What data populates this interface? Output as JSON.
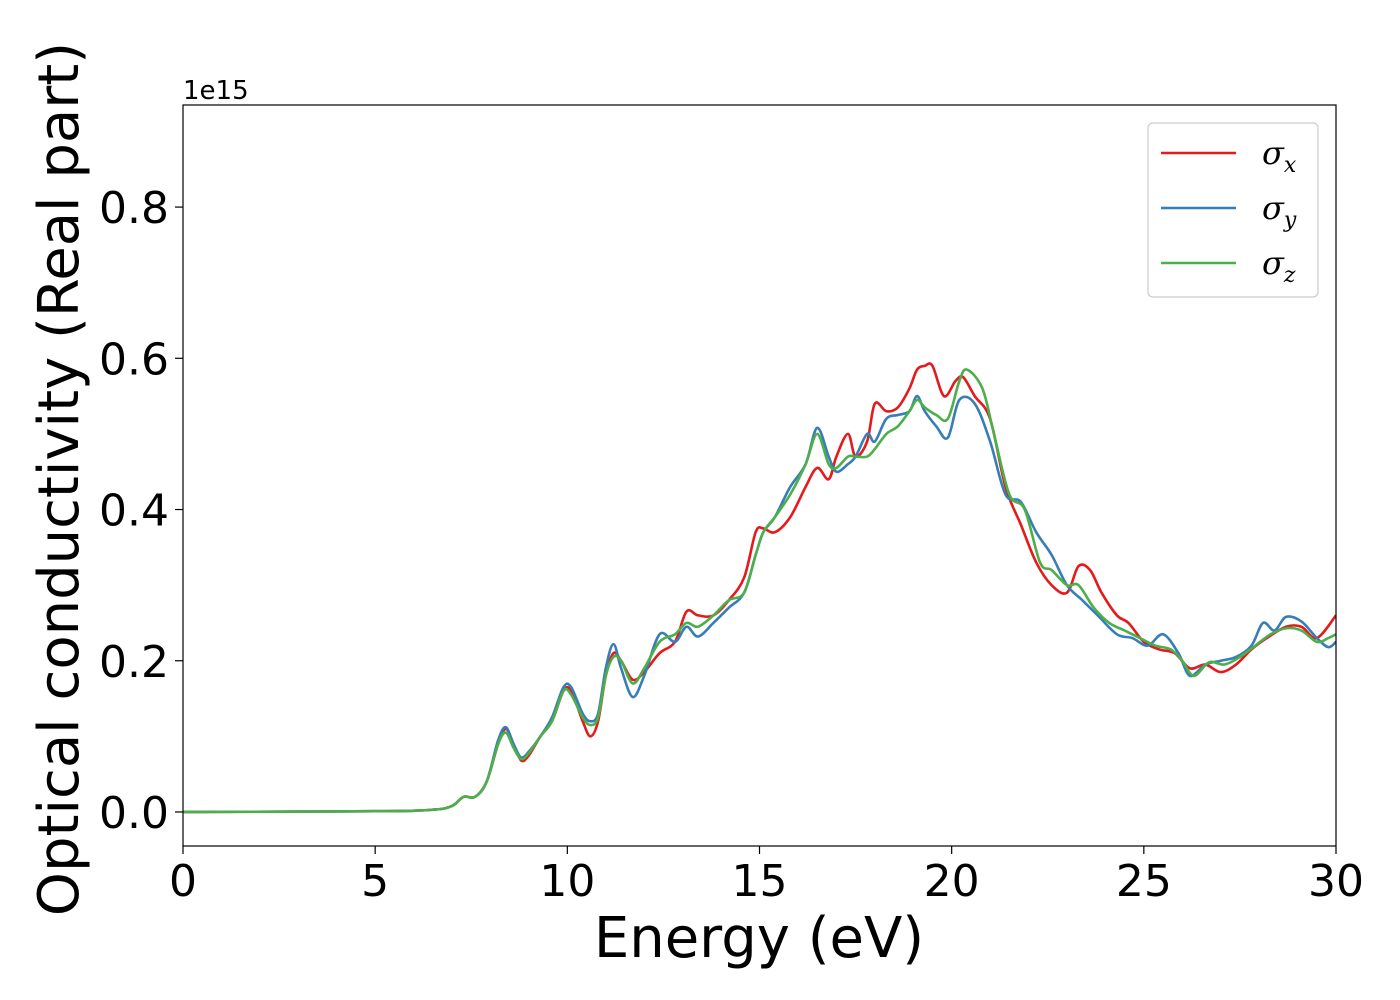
{
  "chart_data": {
    "type": "line",
    "xlabel": "Energy (eV)",
    "ylabel": "Optical conductivity (Real part)",
    "y_offset_label": "1e15",
    "xlim": [
      0,
      30
    ],
    "ylim": [
      -0.045,
      0.935
    ],
    "x_ticks": [
      0,
      5,
      10,
      15,
      20,
      25,
      30
    ],
    "x_tick_labels": [
      "0",
      "5",
      "10",
      "15",
      "20",
      "25",
      "30"
    ],
    "y_ticks": [
      0.0,
      0.2,
      0.4,
      0.6,
      0.8
    ],
    "y_tick_labels": [
      "0.0",
      "0.2",
      "0.4",
      "0.6",
      "0.8"
    ],
    "grid": false,
    "legend_position": "top-right",
    "series": [
      {
        "name": "σx",
        "symbol": "σ",
        "subscript": "x",
        "color": "#e41a1c",
        "points": [
          [
            0,
            0
          ],
          [
            5,
            0.001
          ],
          [
            6.5,
            0.003
          ],
          [
            7.0,
            0.008
          ],
          [
            7.3,
            0.02
          ],
          [
            7.6,
            0.02
          ],
          [
            7.9,
            0.04
          ],
          [
            8.2,
            0.09
          ],
          [
            8.4,
            0.11
          ],
          [
            8.6,
            0.09
          ],
          [
            8.8,
            0.068
          ],
          [
            9.0,
            0.075
          ],
          [
            9.3,
            0.1
          ],
          [
            9.6,
            0.12
          ],
          [
            9.9,
            0.16
          ],
          [
            10.1,
            0.16
          ],
          [
            10.4,
            0.12
          ],
          [
            10.6,
            0.1
          ],
          [
            10.8,
            0.12
          ],
          [
            11.0,
            0.18
          ],
          [
            11.2,
            0.21
          ],
          [
            11.4,
            0.2
          ],
          [
            11.7,
            0.175
          ],
          [
            12.0,
            0.185
          ],
          [
            12.4,
            0.21
          ],
          [
            12.8,
            0.225
          ],
          [
            13.1,
            0.265
          ],
          [
            13.4,
            0.26
          ],
          [
            13.8,
            0.26
          ],
          [
            14.2,
            0.28
          ],
          [
            14.6,
            0.31
          ],
          [
            14.9,
            0.37
          ],
          [
            15.1,
            0.375
          ],
          [
            15.4,
            0.37
          ],
          [
            15.8,
            0.39
          ],
          [
            16.2,
            0.43
          ],
          [
            16.5,
            0.455
          ],
          [
            16.8,
            0.44
          ],
          [
            17.0,
            0.47
          ],
          [
            17.3,
            0.5
          ],
          [
            17.5,
            0.47
          ],
          [
            17.8,
            0.49
          ],
          [
            18.0,
            0.54
          ],
          [
            18.3,
            0.53
          ],
          [
            18.6,
            0.535
          ],
          [
            18.9,
            0.56
          ],
          [
            19.1,
            0.585
          ],
          [
            19.3,
            0.59
          ],
          [
            19.5,
            0.59
          ],
          [
            19.8,
            0.55
          ],
          [
            20.1,
            0.57
          ],
          [
            20.3,
            0.575
          ],
          [
            20.6,
            0.55
          ],
          [
            21.0,
            0.52
          ],
          [
            21.4,
            0.43
          ],
          [
            21.8,
            0.38
          ],
          [
            22.2,
            0.33
          ],
          [
            22.6,
            0.3
          ],
          [
            23.0,
            0.29
          ],
          [
            23.3,
            0.325
          ],
          [
            23.6,
            0.32
          ],
          [
            23.9,
            0.29
          ],
          [
            24.3,
            0.26
          ],
          [
            24.6,
            0.25
          ],
          [
            25.0,
            0.225
          ],
          [
            25.4,
            0.215
          ],
          [
            25.8,
            0.21
          ],
          [
            26.2,
            0.19
          ],
          [
            26.6,
            0.195
          ],
          [
            27.0,
            0.185
          ],
          [
            27.4,
            0.195
          ],
          [
            27.8,
            0.215
          ],
          [
            28.2,
            0.23
          ],
          [
            28.7,
            0.245
          ],
          [
            29.1,
            0.245
          ],
          [
            29.5,
            0.23
          ],
          [
            30.0,
            0.26
          ]
        ]
      },
      {
        "name": "σy",
        "symbol": "σ",
        "subscript": "y",
        "color": "#377eb8",
        "points": [
          [
            0,
            0
          ],
          [
            5,
            0.001
          ],
          [
            6.5,
            0.003
          ],
          [
            7.0,
            0.008
          ],
          [
            7.3,
            0.02
          ],
          [
            7.6,
            0.02
          ],
          [
            7.9,
            0.04
          ],
          [
            8.2,
            0.095
          ],
          [
            8.4,
            0.112
          ],
          [
            8.6,
            0.09
          ],
          [
            8.8,
            0.072
          ],
          [
            9.0,
            0.08
          ],
          [
            9.3,
            0.1
          ],
          [
            9.6,
            0.125
          ],
          [
            9.9,
            0.165
          ],
          [
            10.1,
            0.165
          ],
          [
            10.4,
            0.13
          ],
          [
            10.6,
            0.12
          ],
          [
            10.8,
            0.13
          ],
          [
            11.0,
            0.19
          ],
          [
            11.2,
            0.222
          ],
          [
            11.4,
            0.19
          ],
          [
            11.7,
            0.152
          ],
          [
            12.0,
            0.18
          ],
          [
            12.4,
            0.235
          ],
          [
            12.8,
            0.225
          ],
          [
            13.1,
            0.245
          ],
          [
            13.4,
            0.232
          ],
          [
            13.8,
            0.25
          ],
          [
            14.2,
            0.27
          ],
          [
            14.6,
            0.29
          ],
          [
            14.9,
            0.34
          ],
          [
            15.1,
            0.37
          ],
          [
            15.4,
            0.39
          ],
          [
            15.8,
            0.43
          ],
          [
            16.2,
            0.46
          ],
          [
            16.5,
            0.508
          ],
          [
            16.8,
            0.47
          ],
          [
            17.0,
            0.45
          ],
          [
            17.3,
            0.46
          ],
          [
            17.5,
            0.47
          ],
          [
            17.8,
            0.5
          ],
          [
            18.0,
            0.49
          ],
          [
            18.3,
            0.52
          ],
          [
            18.6,
            0.525
          ],
          [
            18.9,
            0.53
          ],
          [
            19.1,
            0.55
          ],
          [
            19.3,
            0.53
          ],
          [
            19.6,
            0.51
          ],
          [
            19.9,
            0.495
          ],
          [
            20.2,
            0.545
          ],
          [
            20.6,
            0.54
          ],
          [
            21.0,
            0.49
          ],
          [
            21.4,
            0.42
          ],
          [
            21.8,
            0.41
          ],
          [
            22.2,
            0.37
          ],
          [
            22.6,
            0.34
          ],
          [
            23.0,
            0.3
          ],
          [
            23.4,
            0.28
          ],
          [
            23.8,
            0.26
          ],
          [
            24.3,
            0.235
          ],
          [
            24.7,
            0.23
          ],
          [
            25.1,
            0.22
          ],
          [
            25.5,
            0.235
          ],
          [
            25.9,
            0.21
          ],
          [
            26.2,
            0.18
          ],
          [
            26.6,
            0.195
          ],
          [
            27.0,
            0.2
          ],
          [
            27.4,
            0.205
          ],
          [
            27.8,
            0.22
          ],
          [
            28.1,
            0.25
          ],
          [
            28.4,
            0.24
          ],
          [
            28.7,
            0.258
          ],
          [
            29.1,
            0.252
          ],
          [
            29.5,
            0.23
          ],
          [
            29.8,
            0.218
          ],
          [
            30.0,
            0.225
          ]
        ]
      },
      {
        "name": "σz",
        "symbol": "σ",
        "subscript": "z",
        "color": "#4daf4a",
        "points": [
          [
            0,
            0
          ],
          [
            5,
            0.001
          ],
          [
            6.5,
            0.003
          ],
          [
            7.0,
            0.008
          ],
          [
            7.3,
            0.02
          ],
          [
            7.6,
            0.02
          ],
          [
            7.9,
            0.04
          ],
          [
            8.2,
            0.09
          ],
          [
            8.4,
            0.105
          ],
          [
            8.6,
            0.085
          ],
          [
            8.8,
            0.07
          ],
          [
            9.0,
            0.078
          ],
          [
            9.3,
            0.1
          ],
          [
            9.6,
            0.12
          ],
          [
            9.9,
            0.16
          ],
          [
            10.1,
            0.155
          ],
          [
            10.4,
            0.125
          ],
          [
            10.6,
            0.115
          ],
          [
            10.8,
            0.125
          ],
          [
            11.0,
            0.18
          ],
          [
            11.2,
            0.205
          ],
          [
            11.4,
            0.2
          ],
          [
            11.7,
            0.17
          ],
          [
            12.0,
            0.19
          ],
          [
            12.4,
            0.225
          ],
          [
            12.8,
            0.235
          ],
          [
            13.1,
            0.25
          ],
          [
            13.4,
            0.245
          ],
          [
            13.8,
            0.26
          ],
          [
            14.2,
            0.28
          ],
          [
            14.6,
            0.29
          ],
          [
            14.9,
            0.34
          ],
          [
            15.1,
            0.37
          ],
          [
            15.4,
            0.39
          ],
          [
            15.8,
            0.42
          ],
          [
            16.2,
            0.46
          ],
          [
            16.5,
            0.5
          ],
          [
            16.8,
            0.46
          ],
          [
            17.0,
            0.455
          ],
          [
            17.3,
            0.47
          ],
          [
            17.5,
            0.47
          ],
          [
            17.8,
            0.47
          ],
          [
            18.0,
            0.48
          ],
          [
            18.3,
            0.5
          ],
          [
            18.6,
            0.51
          ],
          [
            18.9,
            0.53
          ],
          [
            19.1,
            0.545
          ],
          [
            19.3,
            0.535
          ],
          [
            19.6,
            0.525
          ],
          [
            19.9,
            0.52
          ],
          [
            20.2,
            0.57
          ],
          [
            20.4,
            0.585
          ],
          [
            20.8,
            0.56
          ],
          [
            21.1,
            0.5
          ],
          [
            21.5,
            0.42
          ],
          [
            21.9,
            0.4
          ],
          [
            22.3,
            0.33
          ],
          [
            22.6,
            0.32
          ],
          [
            23.0,
            0.3
          ],
          [
            23.3,
            0.3
          ],
          [
            23.7,
            0.27
          ],
          [
            24.1,
            0.25
          ],
          [
            24.5,
            0.24
          ],
          [
            24.9,
            0.23
          ],
          [
            25.3,
            0.22
          ],
          [
            25.7,
            0.215
          ],
          [
            26.0,
            0.2
          ],
          [
            26.3,
            0.18
          ],
          [
            26.7,
            0.198
          ],
          [
            27.1,
            0.195
          ],
          [
            27.5,
            0.205
          ],
          [
            27.9,
            0.22
          ],
          [
            28.3,
            0.235
          ],
          [
            28.7,
            0.243
          ],
          [
            29.1,
            0.24
          ],
          [
            29.5,
            0.225
          ],
          [
            29.8,
            0.23
          ],
          [
            30.0,
            0.235
          ]
        ]
      }
    ]
  }
}
